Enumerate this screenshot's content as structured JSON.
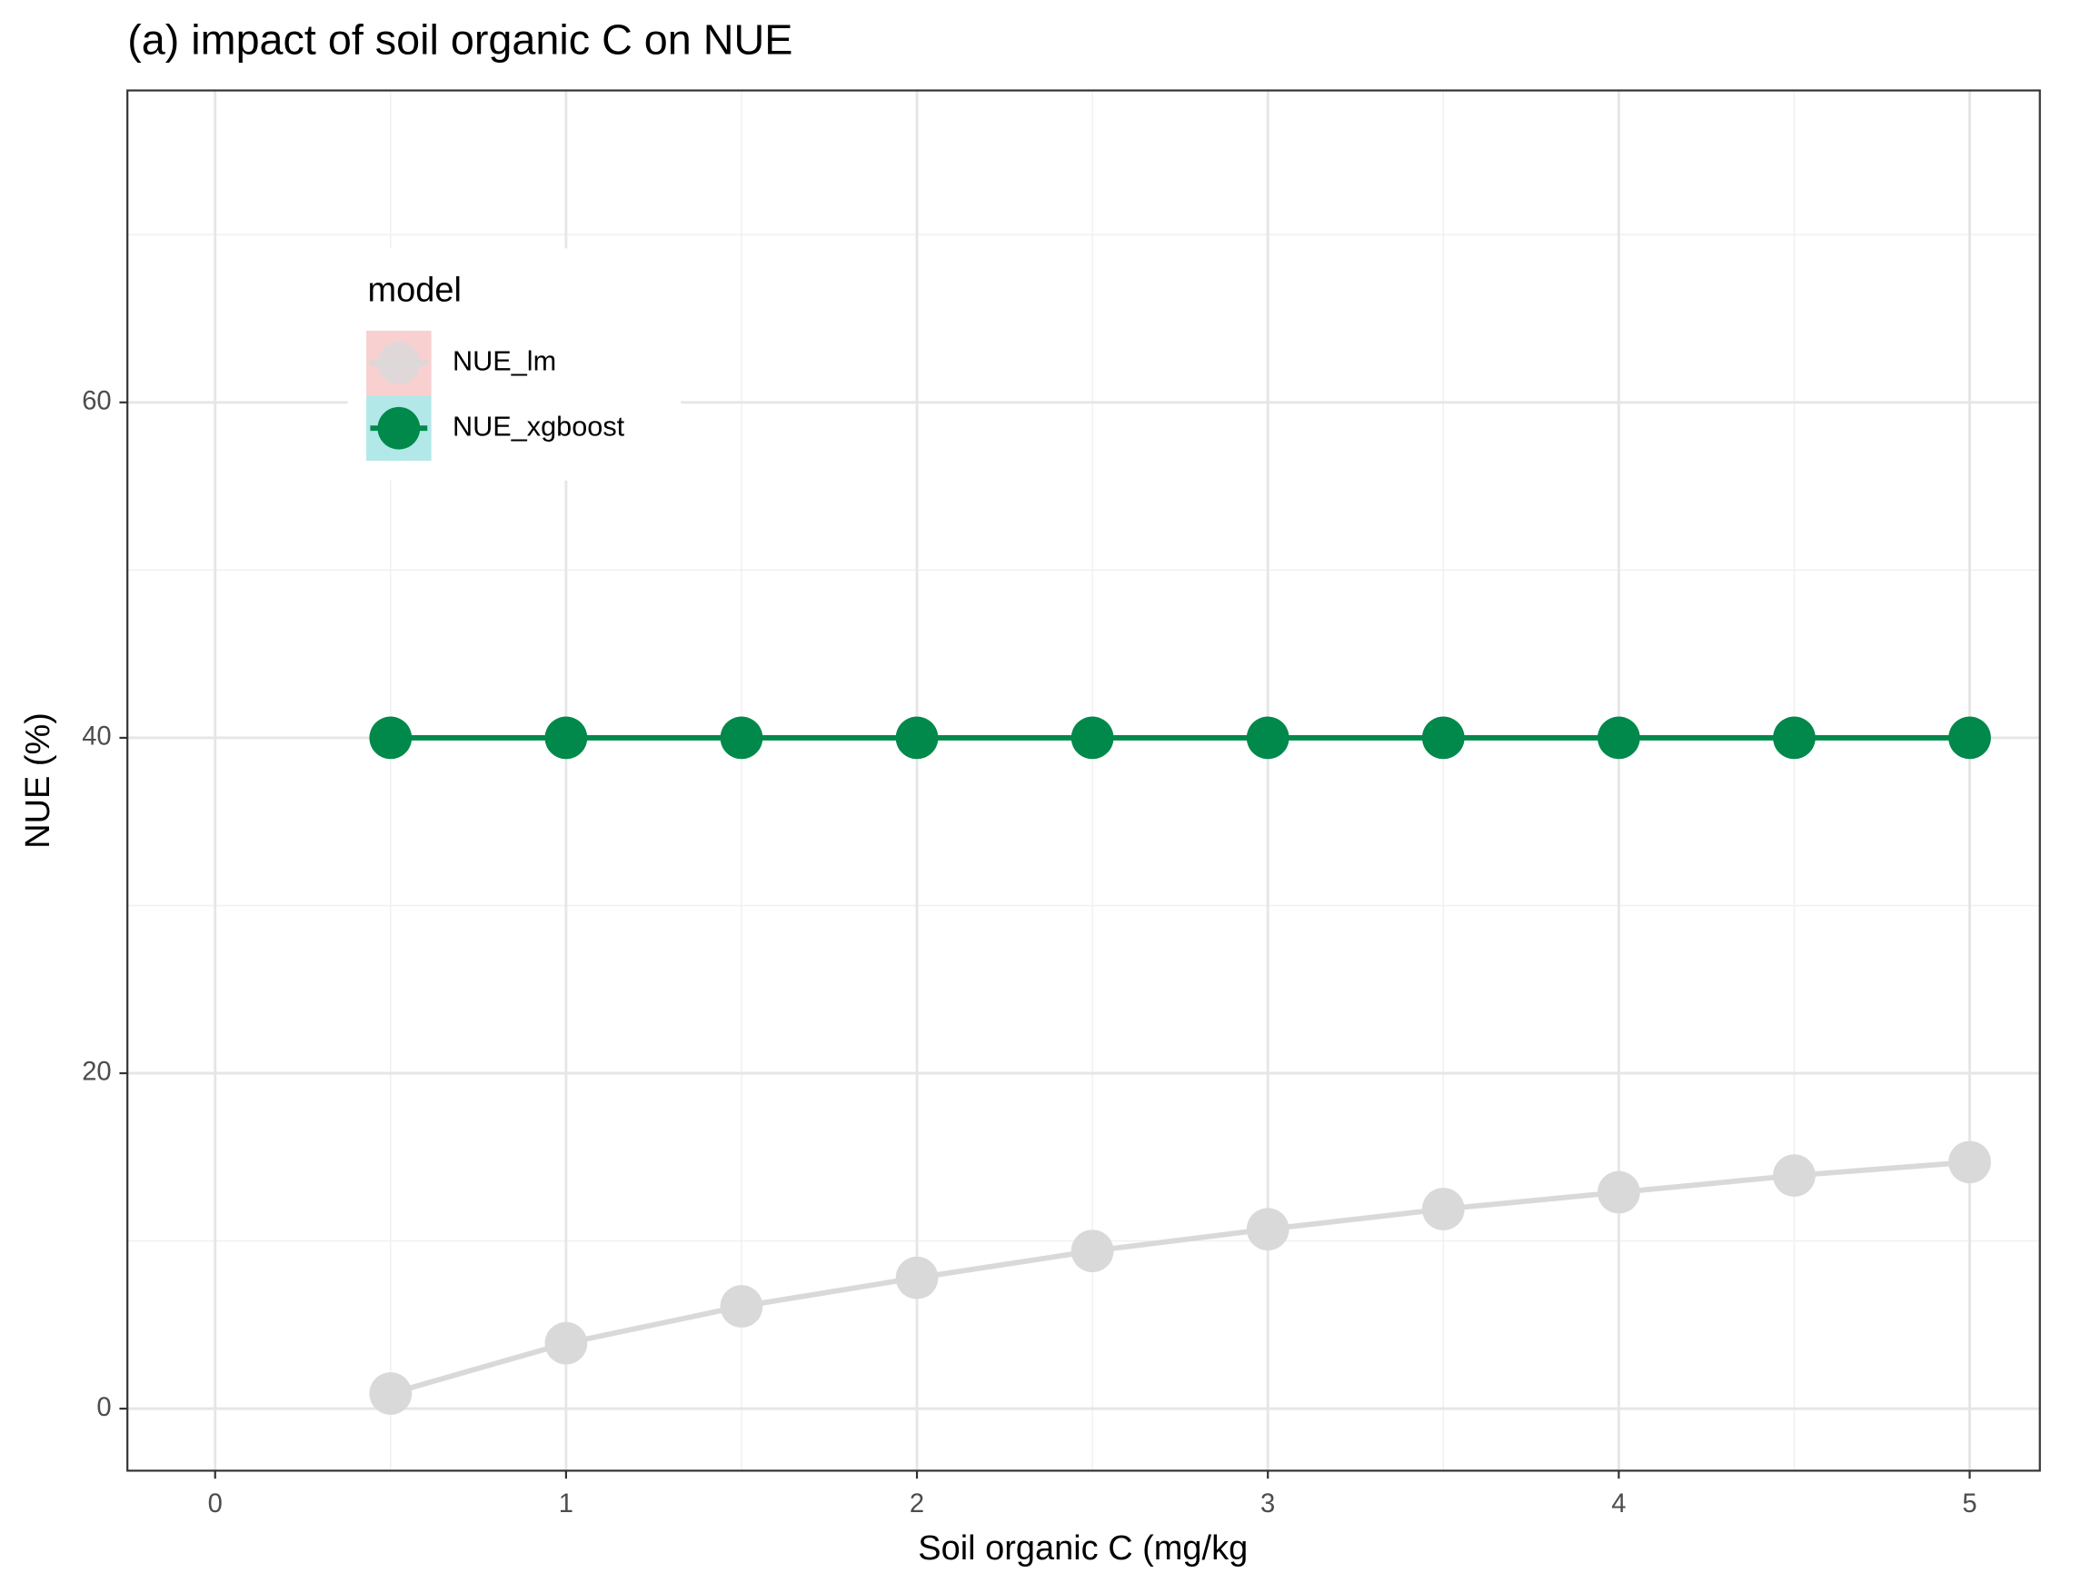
{
  "chart_data": {
    "type": "line",
    "title": "(a) impact of soil organic C on NUE",
    "x_label": "Soil organic C (mg/kg",
    "y_label": "NUE (%)",
    "x": [
      0.5,
      1,
      1.5,
      2,
      2.5,
      3,
      3.5,
      4,
      4.5,
      5
    ],
    "series": [
      {
        "name": "NUE_lm",
        "color": "#d9d9d9",
        "key_fill": "#f8d0d0",
        "values": [
          0.9,
          3.9,
          6.1,
          7.8,
          9.4,
          10.7,
          11.9,
          12.9,
          13.9,
          14.7
        ]
      },
      {
        "name": "NUE_xgboost",
        "color": "#00894a",
        "key_fill": "#b2e8e8",
        "values": [
          40,
          40,
          40,
          40,
          40,
          40,
          40,
          40,
          40,
          40
        ]
      }
    ],
    "legend_title": "model",
    "legend_position": "top-left",
    "xlim": [
      -0.25,
      5.2
    ],
    "ylim": [
      -3.7,
      78.6
    ],
    "xticks": [
      0,
      1,
      2,
      3,
      4,
      5
    ],
    "yticks": [
      0,
      20,
      40,
      60
    ],
    "x_minor_grid": [
      0.5,
      1.5,
      2.5,
      3.5,
      4.5
    ],
    "y_minor_grid": [
      10,
      30,
      50,
      70
    ],
    "grid": true
  }
}
